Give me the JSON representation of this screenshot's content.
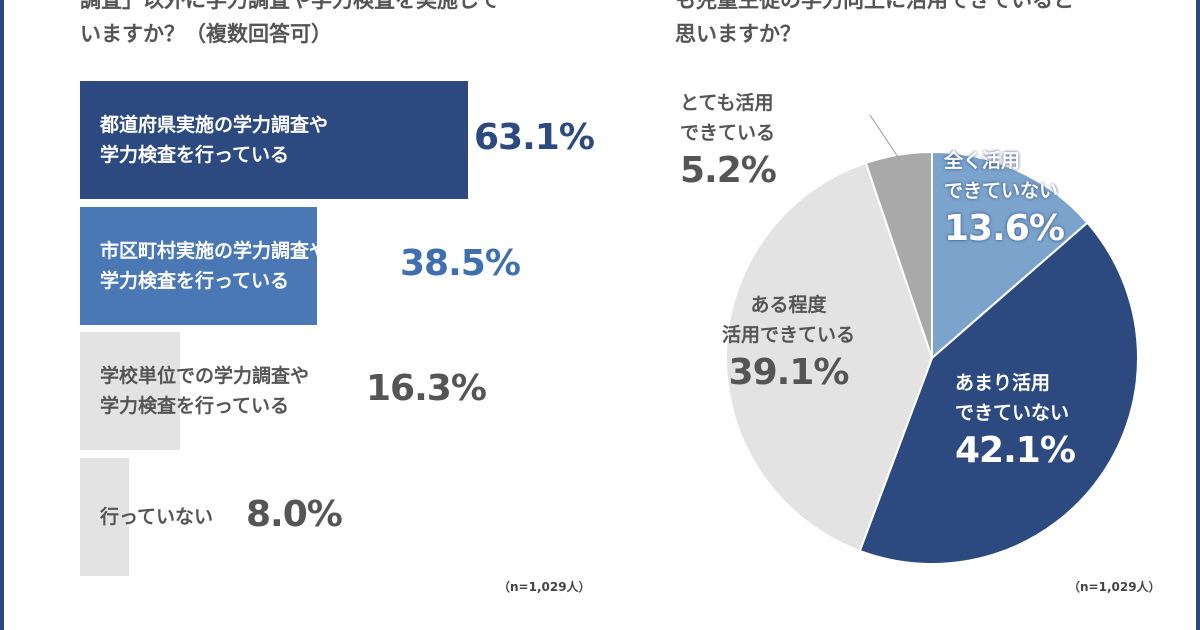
{
  "left_question": {
    "line1": "調査」以外に学力調査や学力検査を実施して",
    "line2": "いますか？（複数回答可）"
  },
  "right_question": {
    "line1": "も児童生徒の学力向上に活用できていると",
    "line2": "思いますか？"
  },
  "chart_data": [
    {
      "type": "bar",
      "orientation": "horizontal",
      "categories": [
        "都道府県実施の学力調査や学力検査を行っている",
        "市区町村実施の学力調査や学力検査を行っている",
        "学校単位での学力調査や学力検査を行っている",
        "行っていない"
      ],
      "label_lines": [
        [
          "都道府県実施の学力調査や",
          "学力検査を行っている"
        ],
        [
          "市区町村実施の学力調査や",
          "学力検査を行っている"
        ],
        [
          "学校単位での学力調査や",
          "学力検査を行っている"
        ],
        [
          "行っていない"
        ]
      ],
      "values": [
        63.1,
        38.5,
        16.3,
        8.0
      ],
      "value_labels": [
        "63.1%",
        "38.5%",
        "16.3%",
        "8.0%"
      ],
      "colors": [
        "#2d4a80",
        "#4a78b5",
        "#e3e3e3",
        "#e3e3e3"
      ],
      "note": "（n=1,029人）"
    },
    {
      "type": "pie",
      "start": "12 o'clock, clockwise",
      "slices": [
        {
          "label_lines": [
            "全く活用",
            "できていない"
          ],
          "value": 13.6,
          "value_label": "13.6%",
          "color": "#7ba3cc"
        },
        {
          "label_lines": [
            "あまり活用",
            "できていない"
          ],
          "value": 42.1,
          "value_label": "42.1%",
          "color": "#2d4a80"
        },
        {
          "label_lines": [
            "ある程度",
            "活用できている"
          ],
          "value": 39.1,
          "value_label": "39.1%",
          "color": "#e3e3e3"
        },
        {
          "label_lines": [
            "とても活用",
            "できている"
          ],
          "value": 5.2,
          "value_label": "5.2%",
          "color": "#a9a9a9"
        }
      ],
      "note": "（n=1,029人）"
    }
  ]
}
